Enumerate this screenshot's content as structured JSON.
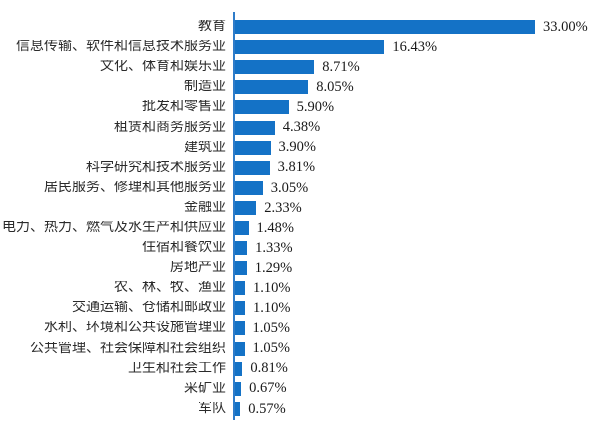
{
  "chart_data": {
    "type": "bar",
    "orientation": "horizontal",
    "title": "",
    "xlabel": "",
    "ylabel": "",
    "grid": false,
    "legend_position": "none",
    "value_axis_max": 33.0,
    "bar_color": "#1472c6",
    "axis_line_color": "#2f7cc9",
    "categories": [
      "教育",
      "信息传输、软件和信息技术服务业",
      "文化、体育和娱乐业",
      "制造业",
      "批发和零售业",
      "租赁和商务服务业",
      "建筑业",
      "科学研究和技术服务业",
      "居民服务、修理和其他服务业",
      "金融业",
      "电力、热力、燃气及水生产和供应业",
      "住宿和餐饮业",
      "房地产业",
      "农、林、牧、渔业",
      "交通运输、仓储和邮政业",
      "水利、环境和公共设施管理业",
      "公共管理、社会保障和社会组织",
      "卫生和社会工作",
      "采矿业",
      "军队"
    ],
    "values": [
      33.0,
      16.43,
      8.71,
      8.05,
      5.9,
      4.38,
      3.9,
      3.81,
      3.05,
      2.33,
      1.48,
      1.33,
      1.29,
      1.1,
      1.1,
      1.05,
      1.05,
      0.81,
      0.67,
      0.57
    ],
    "value_labels": [
      "33.00%",
      "16.43%",
      "8.71%",
      "8.05%",
      "5.90%",
      "4.38%",
      "3.90%",
      "3.81%",
      "3.05%",
      "2.33%",
      "1.48%",
      "1.33%",
      "1.29%",
      "1.10%",
      "1.10%",
      "1.05%",
      "1.05%",
      "0.81%",
      "0.67%",
      "0.57%"
    ]
  }
}
